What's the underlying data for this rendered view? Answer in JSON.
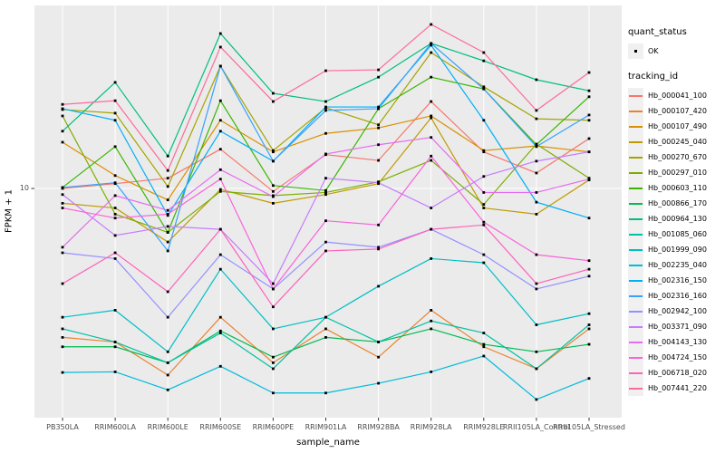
{
  "figure": {
    "background": "#FFFFFF",
    "panel_background": "#EBEBEB",
    "grid_color": "#FFFFFF",
    "axis_text_color": "#4D4D4D",
    "tick_color": "#333333",
    "point_color": "#000000"
  },
  "legend": {
    "quant_status": {
      "title": "quant_status",
      "items": [
        {
          "label": "OK",
          "symbol": "point"
        }
      ]
    },
    "tracking_id": {
      "title": "tracking_id"
    }
  },
  "chart_data": {
    "type": "line",
    "title": "",
    "xlabel": "sample_name",
    "ylabel": "FPKM + 1",
    "yscale": "log10",
    "ytick_labels": [
      "10"
    ],
    "grid": true,
    "legend_position": "right",
    "point_symbol": "small black point (quant_status OK)",
    "categories": [
      "PB350LA",
      "RRIM600LA",
      "RRIM600LE",
      "RRIM600SE",
      "RRIM600PE",
      "RRIM901LA",
      "RRIM928BA",
      "RRIM928LA",
      "RRIM928LE",
      "RRII105LA_Control",
      "RRII105LA_Stressed"
    ],
    "series": [
      {
        "name": "Hb_000041_100",
        "color": "#F8766D",
        "values": [
          10.0,
          10.5,
          11.1,
          14.9,
          9.7,
          14.1,
          13.3,
          24.2,
          14.5,
          11.7,
          16.6
        ]
      },
      {
        "name": "Hb_000107_420",
        "color": "#EA8331",
        "values": [
          2.2,
          2.1,
          1.5,
          2.7,
          1.7,
          2.4,
          1.8,
          2.9,
          2.0,
          1.6,
          2.4
        ]
      },
      {
        "name": "Hb_000107_490",
        "color": "#D89000",
        "values": [
          16.0,
          11.4,
          8.9,
          20.0,
          14.5,
          17.5,
          18.5,
          20.9,
          14.7,
          15.4,
          14.5
        ]
      },
      {
        "name": "Hb_000245_040",
        "color": "#C09B00",
        "values": [
          8.6,
          8.2,
          5.8,
          9.9,
          8.6,
          9.4,
          10.5,
          20.5,
          8.2,
          7.7,
          10.9
        ]
      },
      {
        "name": "Hb_000270_670",
        "color": "#A3A500",
        "values": [
          22.3,
          21.5,
          10.2,
          34.7,
          14.7,
          22.7,
          19.1,
          39.8,
          28.1,
          20.3,
          20.0
        ]
      },
      {
        "name": "Hb_000297_010",
        "color": "#7CAE00",
        "values": [
          20.9,
          7.7,
          6.4,
          9.7,
          9.3,
          9.6,
          10.7,
          13.3,
          8.5,
          15.7,
          11.1
        ]
      },
      {
        "name": "Hb_000603_110",
        "color": "#39B600",
        "values": [
          10.1,
          15.3,
          6.4,
          24.4,
          10.3,
          9.8,
          22.5,
          31.0,
          27.5,
          15.6,
          25.4
        ]
      },
      {
        "name": "Hb_000866_170",
        "color": "#00BB4E",
        "values": [
          2.0,
          2.0,
          1.7,
          2.35,
          1.8,
          2.2,
          2.1,
          2.4,
          2.05,
          1.9,
          2.05
        ]
      },
      {
        "name": "Hb_000964_130",
        "color": "#00BF7D",
        "values": [
          17.9,
          29.4,
          13.9,
          48.3,
          26.3,
          24.2,
          31.0,
          43.7,
          36.6,
          30.2,
          27.0
        ]
      },
      {
        "name": "Hb_001085_060",
        "color": "#00C1A3",
        "values": [
          2.4,
          2.1,
          1.7,
          2.3,
          1.6,
          2.7,
          2.1,
          2.6,
          2.3,
          1.6,
          2.5
        ]
      },
      {
        "name": "Hb_001999_090",
        "color": "#00BFC4",
        "values": [
          2.7,
          2.9,
          1.9,
          4.4,
          2.4,
          2.7,
          3.7,
          4.9,
          4.7,
          2.5,
          2.8
        ]
      },
      {
        "name": "Hb_002235_040",
        "color": "#00BBDA",
        "values": [
          1.54,
          1.55,
          1.29,
          1.64,
          1.25,
          1.25,
          1.38,
          1.55,
          1.82,
          1.17,
          1.45
        ]
      },
      {
        "name": "Hb_002316_150",
        "color": "#00B0F6",
        "values": [
          22.5,
          20.0,
          7.6,
          17.9,
          13.2,
          22.9,
          22.9,
          42.9,
          20.0,
          8.7,
          7.4
        ]
      },
      {
        "name": "Hb_002316_160",
        "color": "#35A2FF",
        "values": [
          10.1,
          10.6,
          5.3,
          34.7,
          13.2,
          22.1,
          22.5,
          43.7,
          27.5,
          15.3,
          21.1
        ]
      },
      {
        "name": "Hb_002942_100",
        "color": "#9590FF",
        "values": [
          5.2,
          4.9,
          2.7,
          5.1,
          3.6,
          5.8,
          5.5,
          6.6,
          5.1,
          3.6,
          4.1
        ]
      },
      {
        "name": "Hb_003371_090",
        "color": "#C77CFF",
        "values": [
          9.4,
          6.2,
          6.8,
          6.6,
          3.8,
          11.1,
          10.6,
          8.2,
          11.3,
          13.2,
          14.5
        ]
      },
      {
        "name": "Hb_004143_130",
        "color": "#E76BF3",
        "values": [
          5.5,
          9.3,
          8.0,
          12.1,
          9.2,
          14.2,
          15.6,
          16.8,
          9.6,
          9.6,
          11.0
        ]
      },
      {
        "name": "Hb_004724_150",
        "color": "#FA62DB",
        "values": [
          8.2,
          7.4,
          7.7,
          11.0,
          3.6,
          7.2,
          6.9,
          13.9,
          7.1,
          5.1,
          4.8
        ]
      },
      {
        "name": "Hb_006718_020",
        "color": "#FF62BC",
        "values": [
          3.8,
          5.2,
          3.5,
          6.6,
          3.0,
          5.3,
          5.4,
          6.6,
          6.9,
          3.8,
          4.4
        ]
      },
      {
        "name": "Hb_007441_220",
        "color": "#FF6A98",
        "values": [
          23.5,
          24.4,
          12.0,
          42.1,
          24.2,
          33.1,
          33.4,
          53.0,
          39.8,
          22.1,
          32.5
        ]
      }
    ]
  }
}
